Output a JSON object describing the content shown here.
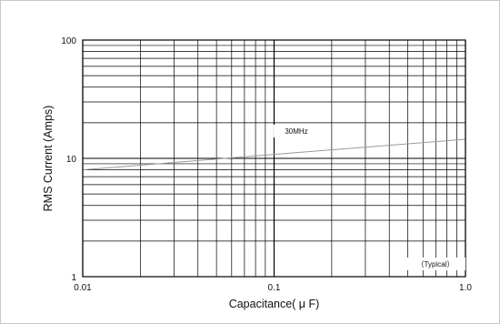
{
  "chart_data": {
    "type": "line",
    "title": "",
    "xlabel": "Capacitance( μ F)",
    "ylabel": "RMS Current (Amps)",
    "xscale": "log",
    "yscale": "log",
    "xlim": [
      0.01,
      1.0
    ],
    "ylim": [
      1,
      100
    ],
    "grid": true,
    "x_tick_labels": [
      "0.01",
      "0.1",
      "1.0"
    ],
    "y_tick_labels": [
      "1",
      "10",
      "100"
    ],
    "series": [
      {
        "name": "30MHz",
        "x": [
          0.01,
          0.1,
          1.0
        ],
        "y": [
          8.0,
          10.8,
          14.5
        ],
        "color": "#9a9a9a"
      }
    ],
    "annotations": [
      {
        "text": "30MHz"
      },
      {
        "text": "（Typical）"
      }
    ]
  }
}
